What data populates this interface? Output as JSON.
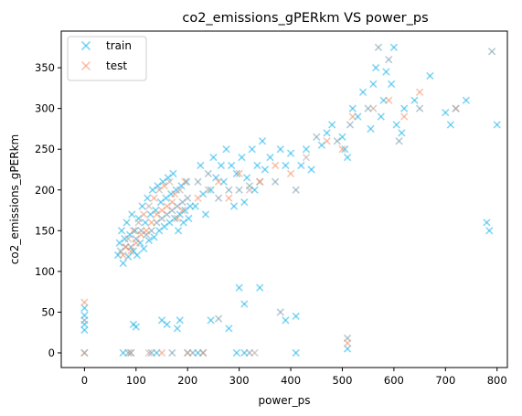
{
  "chart_data": {
    "type": "scatter",
    "title": "co2_emissions_gPERkm  VS  power_ps",
    "xlabel": "power_ps",
    "ylabel": "co2_emissions_gPERkm",
    "xlim": [
      -45,
      820
    ],
    "ylim": [
      -18,
      395
    ],
    "x_ticks": [
      0,
      100,
      200,
      300,
      400,
      500,
      600,
      700,
      800
    ],
    "y_ticks": [
      0,
      50,
      100,
      150,
      200,
      250,
      300,
      350
    ],
    "legend_position": "upper-left",
    "grid": false,
    "marker": "x",
    "series": [
      {
        "name": "train",
        "color": "#1fb6ec",
        "alt_color": "#7aa0b0",
        "points": [
          [
            0,
            0
          ],
          [
            0,
            28
          ],
          [
            0,
            35
          ],
          [
            0,
            40
          ],
          [
            0,
            46
          ],
          [
            0,
            55
          ],
          [
            75,
            0
          ],
          [
            85,
            0
          ],
          [
            90,
            0
          ],
          [
            95,
            35
          ],
          [
            100,
            32
          ],
          [
            130,
            0
          ],
          [
            140,
            0
          ],
          [
            150,
            40
          ],
          [
            160,
            35
          ],
          [
            170,
            0
          ],
          [
            180,
            30
          ],
          [
            185,
            40
          ],
          [
            200,
            0
          ],
          [
            210,
            0
          ],
          [
            220,
            0
          ],
          [
            230,
            0
          ],
          [
            245,
            40
          ],
          [
            260,
            42
          ],
          [
            280,
            30
          ],
          [
            295,
            0
          ],
          [
            310,
            0
          ],
          [
            320,
            0
          ],
          [
            300,
            80
          ],
          [
            310,
            60
          ],
          [
            340,
            80
          ],
          [
            380,
            50
          ],
          [
            390,
            40
          ],
          [
            410,
            0
          ],
          [
            410,
            45
          ],
          [
            510,
            18
          ],
          [
            510,
            5
          ],
          [
            65,
            120
          ],
          [
            68,
            135
          ],
          [
            70,
            125
          ],
          [
            72,
            150
          ],
          [
            75,
            110
          ],
          [
            78,
            140
          ],
          [
            80,
            130
          ],
          [
            82,
            160
          ],
          [
            85,
            118
          ],
          [
            88,
            145
          ],
          [
            90,
            130
          ],
          [
            92,
            170
          ],
          [
            95,
            125
          ],
          [
            98,
            150
          ],
          [
            100,
            140
          ],
          [
            102,
            120
          ],
          [
            105,
            165
          ],
          [
            108,
            135
          ],
          [
            110,
            150
          ],
          [
            112,
            180
          ],
          [
            115,
            128
          ],
          [
            118,
            160
          ],
          [
            120,
            145
          ],
          [
            122,
            190
          ],
          [
            125,
            138
          ],
          [
            128,
            170
          ],
          [
            130,
            150
          ],
          [
            132,
            200
          ],
          [
            135,
            142
          ],
          [
            138,
            175
          ],
          [
            140,
            160
          ],
          [
            142,
            205
          ],
          [
            145,
            150
          ],
          [
            148,
            185
          ],
          [
            150,
            165
          ],
          [
            152,
            210
          ],
          [
            155,
            155
          ],
          [
            158,
            190
          ],
          [
            160,
            170
          ],
          [
            162,
            215
          ],
          [
            165,
            160
          ],
          [
            168,
            195
          ],
          [
            170,
            175
          ],
          [
            172,
            220
          ],
          [
            175,
            165
          ],
          [
            178,
            200
          ],
          [
            180,
            180
          ],
          [
            182,
            150
          ],
          [
            185,
            170
          ],
          [
            188,
            205
          ],
          [
            190,
            185
          ],
          [
            192,
            160
          ],
          [
            195,
            175
          ],
          [
            198,
            210
          ],
          [
            200,
            190
          ],
          [
            202,
            165
          ],
          [
            205,
            180
          ],
          [
            215,
            180
          ],
          [
            220,
            210
          ],
          [
            225,
            230
          ],
          [
            230,
            195
          ],
          [
            235,
            170
          ],
          [
            240,
            220
          ],
          [
            245,
            200
          ],
          [
            250,
            240
          ],
          [
            255,
            215
          ],
          [
            260,
            190
          ],
          [
            265,
            230
          ],
          [
            270,
            210
          ],
          [
            275,
            250
          ],
          [
            280,
            200
          ],
          [
            285,
            230
          ],
          [
            290,
            180
          ],
          [
            295,
            220
          ],
          [
            300,
            200
          ],
          [
            305,
            240
          ],
          [
            310,
            185
          ],
          [
            315,
            215
          ],
          [
            320,
            205
          ],
          [
            325,
            250
          ],
          [
            330,
            200
          ],
          [
            335,
            230
          ],
          [
            340,
            210
          ],
          [
            345,
            260
          ],
          [
            350,
            225
          ],
          [
            360,
            240
          ],
          [
            370,
            210
          ],
          [
            380,
            250
          ],
          [
            390,
            230
          ],
          [
            400,
            245
          ],
          [
            410,
            200
          ],
          [
            420,
            230
          ],
          [
            430,
            250
          ],
          [
            440,
            225
          ],
          [
            450,
            265
          ],
          [
            460,
            255
          ],
          [
            470,
            270
          ],
          [
            480,
            280
          ],
          [
            490,
            260
          ],
          [
            500,
            265
          ],
          [
            505,
            250
          ],
          [
            510,
            240
          ],
          [
            515,
            280
          ],
          [
            520,
            300
          ],
          [
            530,
            290
          ],
          [
            540,
            320
          ],
          [
            550,
            300
          ],
          [
            555,
            275
          ],
          [
            560,
            330
          ],
          [
            565,
            350
          ],
          [
            570,
            375
          ],
          [
            575,
            290
          ],
          [
            580,
            310
          ],
          [
            585,
            345
          ],
          [
            590,
            360
          ],
          [
            595,
            330
          ],
          [
            600,
            375
          ],
          [
            605,
            280
          ],
          [
            610,
            260
          ],
          [
            615,
            270
          ],
          [
            620,
            300
          ],
          [
            640,
            310
          ],
          [
            650,
            300
          ],
          [
            670,
            340
          ],
          [
            700,
            295
          ],
          [
            710,
            280
          ],
          [
            720,
            300
          ],
          [
            740,
            310
          ],
          [
            780,
            160
          ],
          [
            785,
            150
          ],
          [
            790,
            370
          ],
          [
            800,
            280
          ]
        ]
      },
      {
        "name": "test",
        "color": "#f4956e",
        "alt_color": "#c0a8a0",
        "points": [
          [
            0,
            0
          ],
          [
            0,
            62
          ],
          [
            90,
            0
          ],
          [
            125,
            0
          ],
          [
            150,
            0
          ],
          [
            200,
            0
          ],
          [
            230,
            0
          ],
          [
            330,
            0
          ],
          [
            510,
            12
          ],
          [
            75,
            120
          ],
          [
            80,
            130
          ],
          [
            85,
            140
          ],
          [
            90,
            125
          ],
          [
            95,
            150
          ],
          [
            100,
            135
          ],
          [
            105,
            160
          ],
          [
            110,
            145
          ],
          [
            115,
            170
          ],
          [
            120,
            150
          ],
          [
            125,
            180
          ],
          [
            130,
            160
          ],
          [
            135,
            190
          ],
          [
            140,
            170
          ],
          [
            145,
            200
          ],
          [
            150,
            175
          ],
          [
            155,
            205
          ],
          [
            160,
            180
          ],
          [
            165,
            210
          ],
          [
            170,
            185
          ],
          [
            175,
            195
          ],
          [
            180,
            165
          ],
          [
            185,
            200
          ],
          [
            190,
            175
          ],
          [
            195,
            210
          ],
          [
            220,
            190
          ],
          [
            240,
            200
          ],
          [
            260,
            210
          ],
          [
            280,
            190
          ],
          [
            300,
            220
          ],
          [
            320,
            200
          ],
          [
            340,
            210
          ],
          [
            370,
            230
          ],
          [
            400,
            220
          ],
          [
            430,
            240
          ],
          [
            470,
            260
          ],
          [
            500,
            250
          ],
          [
            520,
            290
          ],
          [
            560,
            300
          ],
          [
            590,
            310
          ],
          [
            620,
            290
          ],
          [
            650,
            320
          ],
          [
            720,
            300
          ]
        ]
      }
    ]
  }
}
